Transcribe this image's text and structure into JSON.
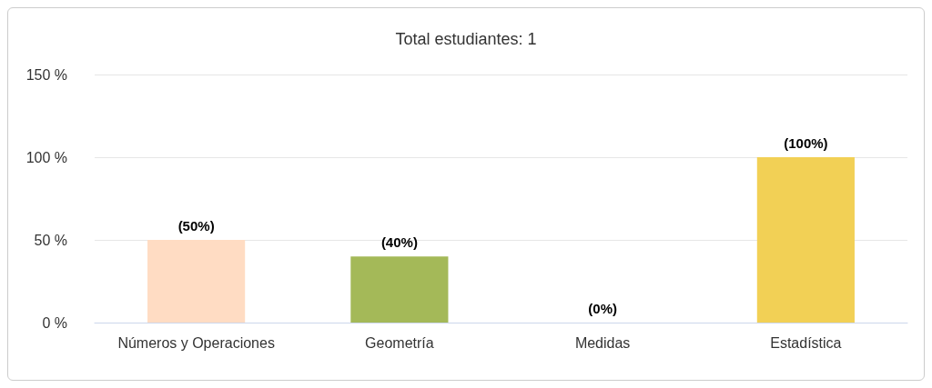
{
  "chart_data": {
    "type": "bar",
    "title": "Total estudiantes: 1",
    "categories": [
      "Números y Operaciones",
      "Geometría",
      "Medidas",
      "Estadística"
    ],
    "values": [
      50,
      40,
      0,
      100
    ],
    "colors": [
      "#ffdcc3",
      "#a4b958",
      "#7cb5ec",
      "#f2d055"
    ],
    "value_labels": [
      "(50%)",
      "(40%)",
      "(0%)",
      "(100%)"
    ],
    "ylim": [
      0,
      150
    ],
    "yticks": [
      {
        "value": 0,
        "label": "0 %"
      },
      {
        "value": 50,
        "label": "50 %"
      },
      {
        "value": 100,
        "label": "100 %"
      },
      {
        "value": 150,
        "label": "150 %"
      }
    ],
    "grid": "y"
  }
}
